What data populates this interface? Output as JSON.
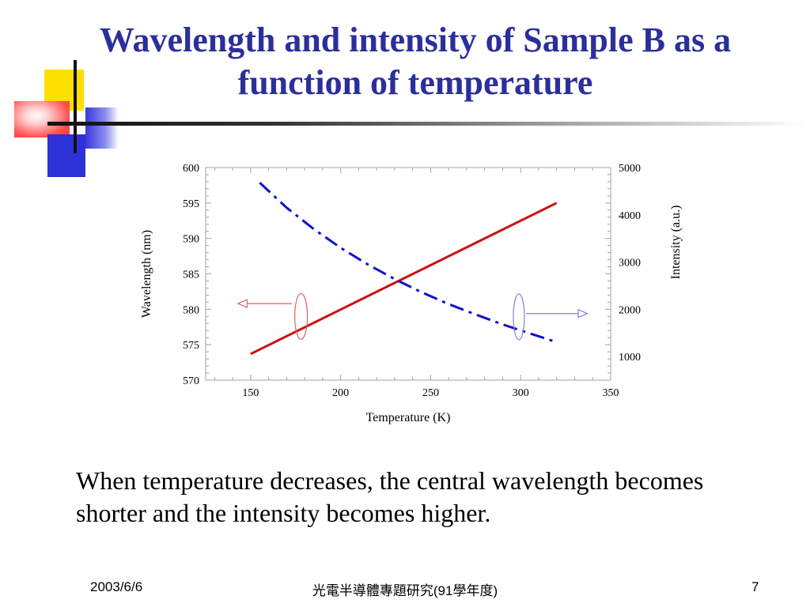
{
  "slide": {
    "title": "Wavelength and intensity of Sample B as a function of temperature",
    "body": "When temperature decreases, the central wavelength becomes shorter and the intensity becomes higher.",
    "footer": {
      "date": "2003/6/6",
      "center": "光電半導體專題研究(91學年度)",
      "page": "7"
    }
  },
  "chart_data": {
    "type": "line",
    "xlabel": "Temperature (K)",
    "ylabel_left": "Wavelength (nm)",
    "ylabel_right": "Intensity (a.u.)",
    "xlim": [
      125,
      350
    ],
    "ylim_left": [
      570,
      600
    ],
    "ylim_right": [
      500,
      5000
    ],
    "x_ticks": [
      150,
      200,
      250,
      300,
      350
    ],
    "y_ticks_left": [
      570,
      575,
      580,
      585,
      590,
      595,
      600
    ],
    "y_ticks_right": [
      1000,
      2000,
      3000,
      4000,
      5000
    ],
    "series": [
      {
        "axis": "left",
        "color": "#cc1111",
        "style": "solid",
        "x": [
          150,
          320
        ],
        "y": [
          573.7,
          595.0
        ]
      },
      {
        "axis": "right",
        "color": "#1111cc",
        "style": "dash-dot",
        "x": [
          155,
          170,
          185,
          200,
          215,
          230,
          245,
          260,
          275,
          290,
          305,
          318
        ],
        "y": [
          4680,
          4150,
          3700,
          3300,
          2950,
          2640,
          2360,
          2110,
          1890,
          1680,
          1490,
          1330
        ]
      }
    ],
    "colors": {
      "left_arrow": "#e06060",
      "right_arrow": "#8080e0",
      "frame": "#a0a0b0"
    }
  }
}
